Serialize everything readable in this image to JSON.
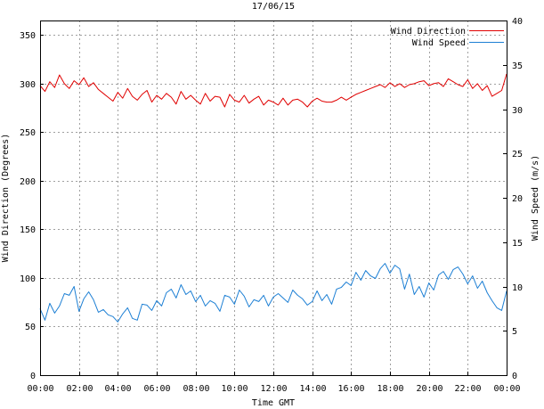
{
  "chart_data": {
    "type": "line",
    "title": "17/06/15",
    "xlabel": "Time GMT",
    "ylabel_left": "Wind Direction (Degrees)",
    "ylabel_right": "Wind Speed (m/s)",
    "x_tick_labels": [
      "00:00",
      "02:00",
      "04:00",
      "06:00",
      "08:00",
      "10:00",
      "12:00",
      "14:00",
      "16:00",
      "18:00",
      "20:00",
      "22:00",
      "00:00"
    ],
    "x_range_hours": [
      0,
      24
    ],
    "y_left_ticks": [
      "0",
      "50",
      "100",
      "150",
      "200",
      "250",
      "300",
      "350"
    ],
    "y_left_range": [
      0,
      365
    ],
    "y_right_ticks": [
      "0",
      "5",
      "10",
      "15",
      "20",
      "25",
      "30",
      "35",
      "40"
    ],
    "y_right_range": [
      0,
      40
    ],
    "grid": true,
    "legend_position": "top-right",
    "series": [
      {
        "name": "Wind Direction",
        "axis": "left",
        "color": "#e00000",
        "sample_interval_hours": 0.25,
        "values": [
          298,
          292,
          302,
          296,
          309,
          300,
          295,
          303,
          299,
          306,
          297,
          301,
          294,
          290,
          286,
          282,
          291,
          285,
          295,
          287,
          283,
          289,
          293,
          281,
          288,
          284,
          290,
          286,
          279,
          292,
          284,
          288,
          283,
          279,
          290,
          282,
          287,
          286,
          276,
          289,
          283,
          281,
          288,
          280,
          284,
          287,
          278,
          283,
          281,
          278,
          285,
          278,
          283,
          284,
          281,
          276,
          282,
          285,
          282,
          281,
          281,
          283,
          286,
          283,
          286,
          289,
          291,
          293,
          295,
          297,
          299,
          296,
          301,
          297,
          300,
          296,
          299,
          300,
          302,
          303,
          298,
          300,
          301,
          297,
          305,
          302,
          299,
          297,
          304,
          295,
          300,
          293,
          298,
          287,
          290,
          293,
          310
        ]
      },
      {
        "name": "Wind Speed",
        "axis": "right",
        "color": "#1c7fd4",
        "sample_interval_hours": 0.25,
        "values": [
          7.5,
          6.2,
          8.1,
          7.0,
          7.8,
          9.2,
          9.0,
          10.0,
          7.2,
          8.6,
          9.4,
          8.5,
          7.1,
          7.4,
          6.8,
          6.6,
          6.0,
          6.9,
          7.6,
          6.4,
          6.2,
          8.0,
          7.9,
          7.3,
          8.4,
          7.8,
          9.3,
          9.7,
          8.7,
          10.2,
          9.1,
          9.5,
          8.3,
          9.0,
          7.8,
          8.4,
          8.1,
          7.2,
          9.0,
          8.8,
          8.0,
          9.6,
          8.9,
          7.7,
          8.5,
          8.3,
          9.0,
          7.8,
          8.8,
          9.2,
          8.7,
          8.2,
          9.6,
          9.0,
          8.6,
          7.9,
          8.3,
          9.5,
          8.4,
          9.1,
          8.0,
          9.7,
          9.9,
          10.5,
          10.1,
          11.6,
          10.7,
          11.8,
          11.2,
          10.9,
          12.0,
          12.6,
          11.5,
          12.4,
          12.0,
          9.7,
          11.4,
          9.1,
          10.0,
          8.8,
          10.4,
          9.6,
          11.3,
          11.7,
          10.8,
          11.9,
          12.2,
          11.4,
          10.3,
          11.2,
          9.8,
          10.6,
          9.3,
          8.4,
          7.6,
          7.3,
          9.5
        ]
      }
    ]
  }
}
